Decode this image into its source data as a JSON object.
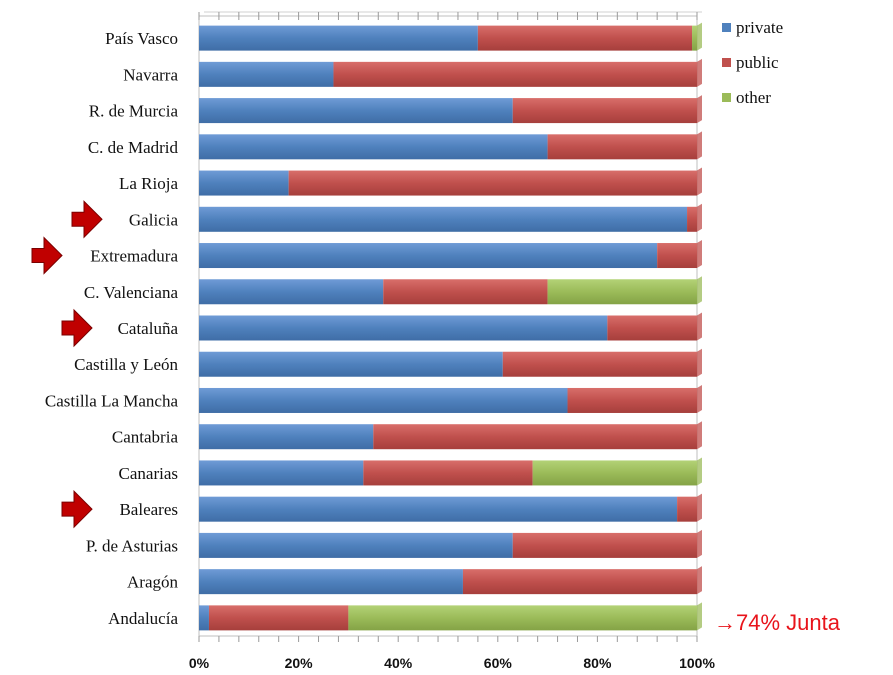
{
  "chart_data": {
    "type": "bar",
    "orientation": "horizontal",
    "stacked": "percent",
    "categories": [
      "País Vasco",
      "Navarra",
      "R. de Murcia",
      "C. de Madrid",
      "La Rioja",
      "Galicia",
      "Extremadura",
      "C. Valenciana",
      "Cataluña",
      "Castilla y  León",
      "Castilla La Mancha",
      "Cantabria",
      "Canarias",
      "Baleares",
      "P. de Asturias",
      "Aragón",
      "Andalucía"
    ],
    "series": [
      {
        "name": "private",
        "color": "#4f81bd",
        "values": [
          56,
          27,
          63,
          70,
          18,
          98,
          92,
          37,
          82,
          61,
          74,
          35,
          33,
          96,
          63,
          53,
          2
        ]
      },
      {
        "name": "public",
        "color": "#c0504d",
        "values": [
          43,
          73,
          37,
          30,
          82,
          2,
          8,
          33,
          18,
          39,
          26,
          65,
          34,
          4,
          37,
          47,
          28
        ]
      },
      {
        "name": "other",
        "color": "#9bbb59",
        "values": [
          1,
          0,
          0,
          0,
          0,
          0,
          0,
          30,
          0,
          0,
          0,
          0,
          33,
          0,
          0,
          0,
          70
        ]
      }
    ],
    "xlim": [
      0,
      100
    ],
    "xticks": [
      "0%",
      "20%",
      "40%",
      "60%",
      "80%",
      "100%"
    ],
    "legend_position": "right",
    "grid": false
  },
  "highlighted_categories": [
    "Galicia",
    "Extremadura",
    "Cataluña",
    "Baleares"
  ],
  "annotation": {
    "text": "→74% Junta",
    "category": "Andalucía",
    "color": "#e8141b"
  }
}
